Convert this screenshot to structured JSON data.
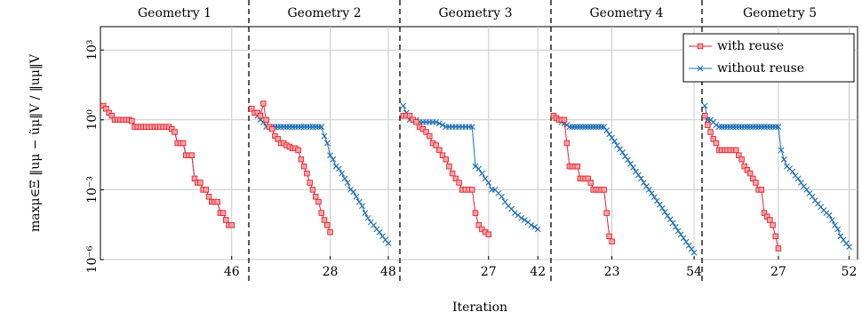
{
  "chart_data": {
    "type": "line",
    "xlabel": "Iteration",
    "ylabel": "maxμ∈Ξ ‖uμ − ũμ‖V / ‖uμ‖V",
    "log_y": true,
    "grid": true,
    "legend": "upper right",
    "ylim": [
      1e-06,
      10000
    ],
    "yticks": [
      {
        "value": 1e-06,
        "label": "10⁻⁶"
      },
      {
        "value": 0.001,
        "label": "10⁻³"
      },
      {
        "value": 1,
        "label": "10⁰"
      },
      {
        "value": 1000,
        "label": "10³"
      }
    ],
    "series": [
      {
        "name": "with reuse",
        "color": "#e3262e",
        "marker": "square"
      },
      {
        "name": "without reuse",
        "color": "#1f6fb4",
        "marker": "x"
      }
    ],
    "panels": [
      {
        "title": "Geometry 1",
        "xlim": [
          0,
          52
        ],
        "xticks": [
          46
        ],
        "series": [
          {
            "values": [
              4,
              3,
              2,
              1.5,
              1,
              1,
              1,
              1,
              1,
              1,
              0.9,
              0.5,
              0.5,
              0.5,
              0.5,
              0.5,
              0.5,
              0.5,
              0.5,
              0.5,
              0.5,
              0.5,
              0.5,
              0.5,
              0.4,
              0.3,
              0.1,
              0.1,
              0.1,
              0.03,
              0.03,
              0.03,
              0.003,
              0.002,
              0.002,
              0.001,
              0.001,
              0.0005,
              0.0003,
              0.0003,
              0.0003,
              0.0001,
              0.0001,
              5e-05,
              3e-05,
              3e-05
            ]
          },
          {
            "values": [
              4,
              3,
              2,
              1.5,
              1,
              1,
              1,
              1,
              1,
              1,
              0.9,
              0.5,
              0.5,
              0.5,
              0.5,
              0.5,
              0.5,
              0.5,
              0.5,
              0.5,
              0.5,
              0.5,
              0.5,
              0.5,
              0.4,
              0.3,
              0.1,
              0.1,
              0.1,
              0.03,
              0.03,
              0.03,
              0.003,
              0.002,
              0.002,
              0.001,
              0.001,
              0.0005,
              0.0003,
              0.0003,
              0.0003,
              0.0001,
              0.0001,
              5e-05,
              3e-05,
              3e-05
            ]
          }
        ]
      },
      {
        "title": "Geometry 2",
        "xlim": [
          0,
          52
        ],
        "xticks": [
          28,
          48
        ],
        "series": [
          {
            "values": [
              3,
              2,
              2,
              1.5,
              5,
              1,
              0.5,
              0.4,
              0.2,
              0.15,
              0.1,
              0.1,
              0.08,
              0.07,
              0.06,
              0.06,
              0.05,
              0.02,
              0.01,
              0.005,
              0.002,
              0.001,
              0.0005,
              0.0003,
              0.0001,
              5e-05,
              3e-05,
              1.5e-05
            ]
          },
          {
            "values": [
              3,
              2,
              1.5,
              1,
              0.8,
              0.5,
              0.5,
              0.5,
              0.5,
              0.5,
              0.5,
              0.5,
              0.5,
              0.5,
              0.5,
              0.5,
              0.5,
              0.5,
              0.5,
              0.5,
              0.5,
              0.5,
              0.5,
              0.5,
              0.5,
              0.2,
              0.1,
              0.03,
              0.02,
              0.01,
              0.008,
              0.005,
              0.003,
              0.002,
              0.001,
              0.0008,
              0.0005,
              0.0003,
              0.0002,
              0.0001,
              6e-05,
              4e-05,
              3e-05,
              2e-05,
              1.5e-05,
              1e-05,
              7e-06,
              5e-06
            ]
          }
        ]
      },
      {
        "title": "Geometry 3",
        "xlim": [
          0,
          46
        ],
        "xticks": [
          27,
          42
        ],
        "series": [
          {
            "values": [
              1.5,
              1.5,
              1.5,
              1,
              0.8,
              0.5,
              0.4,
              0.3,
              0.2,
              0.1,
              0.08,
              0.05,
              0.03,
              0.02,
              0.01,
              0.005,
              0.003,
              0.002,
              0.001,
              0.001,
              0.001,
              0.001,
              0.0001,
              3e-05,
              2e-05,
              1.5e-05,
              1.2e-05
            ]
          },
          {
            "values": [
              4,
              2,
              1,
              1,
              1,
              0.8,
              0.8,
              0.8,
              0.8,
              0.8,
              0.8,
              0.7,
              0.6,
              0.5,
              0.5,
              0.5,
              0.5,
              0.5,
              0.5,
              0.5,
              0.5,
              0.5,
              0.01,
              0.008,
              0.005,
              0.003,
              0.002,
              0.001,
              0.001,
              0.0007,
              0.0005,
              0.0003,
              0.0002,
              0.00015,
              0.0001,
              8e-05,
              6e-05,
              5e-05,
              4e-05,
              3e-05,
              2.5e-05,
              2e-05
            ]
          }
        ]
      },
      {
        "title": "Geometry 4",
        "xlim": [
          0,
          57
        ],
        "xticks": [
          23,
          54
        ],
        "series": [
          {
            "values": [
              1.5,
              1.2,
              1,
              1,
              1,
              0.1,
              0.01,
              0.01,
              0.01,
              0.01,
              0.003,
              0.003,
              0.003,
              0.003,
              0.002,
              0.001,
              0.001,
              0.001,
              0.001,
              0.001,
              0.0001,
              1e-05,
              6e-06
            ]
          },
          {
            "values": [
              1.5,
              1.2,
              1,
              0.8,
              0.7,
              0.6,
              0.5,
              0.5,
              0.5,
              0.5,
              0.5,
              0.5,
              0.5,
              0.5,
              0.5,
              0.5,
              0.5,
              0.5,
              0.5,
              0.5,
              0.35,
              0.24,
              0.17,
              0.12,
              0.08,
              0.055,
              0.04,
              0.027,
              0.019,
              0.013,
              0.009,
              0.006,
              0.0043,
              0.003,
              0.002,
              0.0014,
              0.001,
              0.0007,
              0.00048,
              0.00033,
              0.00023,
              0.00016,
              0.00011,
              7.6e-05,
              5.3e-05,
              3.7e-05,
              2.5e-05,
              1.7e-05,
              1.2e-05,
              8.3e-06,
              5.8e-06,
              4e-06,
              2.8e-06,
              2e-06
            ]
          }
        ]
      },
      {
        "title": "Geometry 5",
        "xlim": [
          0,
          55
        ],
        "xticks": [
          27,
          52
        ],
        "series": [
          {
            "values": [
              1.5,
              0.6,
              0.3,
              0.15,
              0.1,
              0.05,
              0.05,
              0.05,
              0.05,
              0.05,
              0.05,
              0.05,
              0.03,
              0.02,
              0.01,
              0.007,
              0.005,
              0.003,
              0.002,
              0.001,
              0.001,
              0.0001,
              7e-05,
              5e-05,
              3e-05,
              1e-05,
              3e-06
            ]
          },
          {
            "values": [
              4,
              1,
              1,
              0.8,
              0.6,
              0.5,
              0.5,
              0.5,
              0.5,
              0.5,
              0.5,
              0.5,
              0.5,
              0.5,
              0.5,
              0.5,
              0.5,
              0.5,
              0.5,
              0.5,
              0.5,
              0.5,
              0.5,
              0.5,
              0.5,
              0.5,
              0.5,
              0.05,
              0.02,
              0.01,
              0.008,
              0.006,
              0.004,
              0.003,
              0.002,
              0.0014,
              0.001,
              0.0007,
              0.0005,
              0.00035,
              0.00025,
              0.00018,
              0.00013,
              0.0001,
              8e-05,
              5e-05,
              3e-05,
              2e-05,
              1e-05,
              7e-06,
              5e-06,
              3.5e-06
            ]
          }
        ]
      }
    ]
  }
}
